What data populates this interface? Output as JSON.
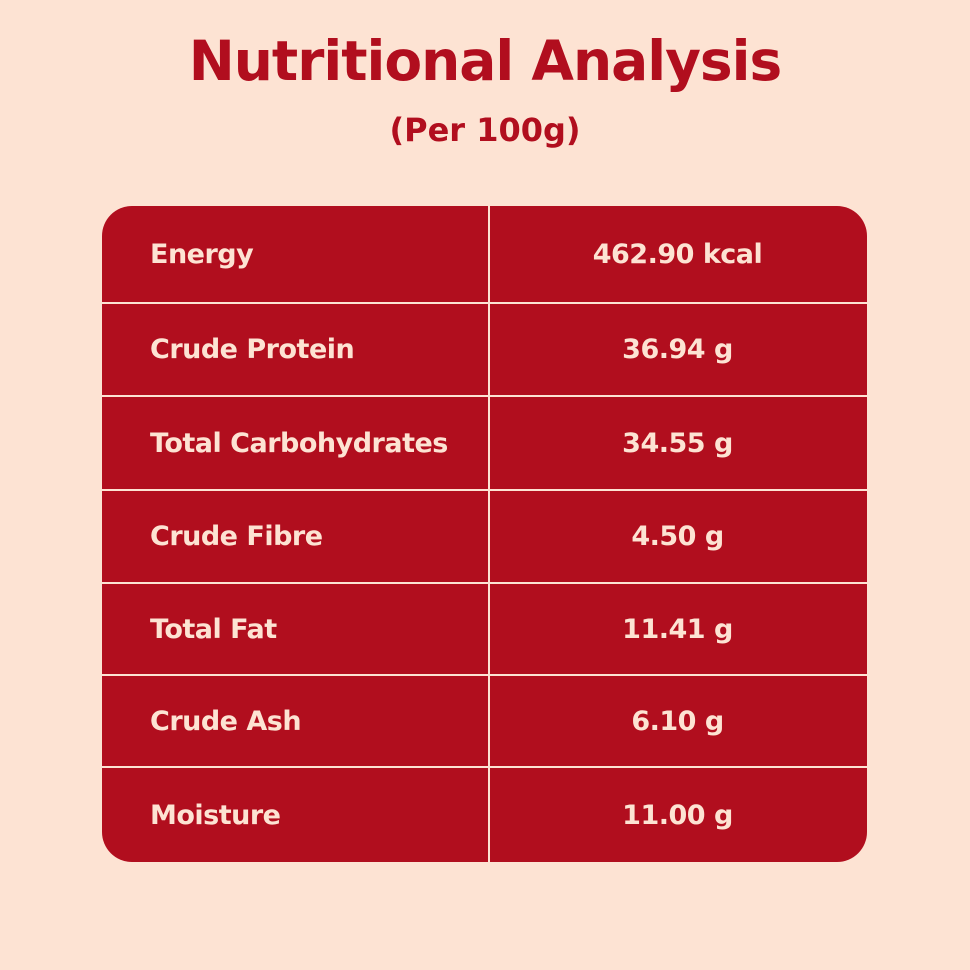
{
  "header": {
    "title": "Nutritional Analysis",
    "subtitle": "(Per 100g)"
  },
  "table": {
    "rows": [
      {
        "nutrient": "Energy",
        "value": "462.90 kcal"
      },
      {
        "nutrient": "Crude Protein",
        "value": "36.94 g"
      },
      {
        "nutrient": "Total Carbohydrates",
        "value": "34.55 g"
      },
      {
        "nutrient": "Crude Fibre",
        "value": "4.50 g"
      },
      {
        "nutrient": "Total Fat",
        "value": "11.41 g"
      },
      {
        "nutrient": "Crude Ash",
        "value": "6.10 g"
      },
      {
        "nutrient": "Moisture",
        "value": "11.00 g"
      }
    ]
  },
  "colors": {
    "background": "#fde3d3",
    "accent": "#b10e1e"
  }
}
